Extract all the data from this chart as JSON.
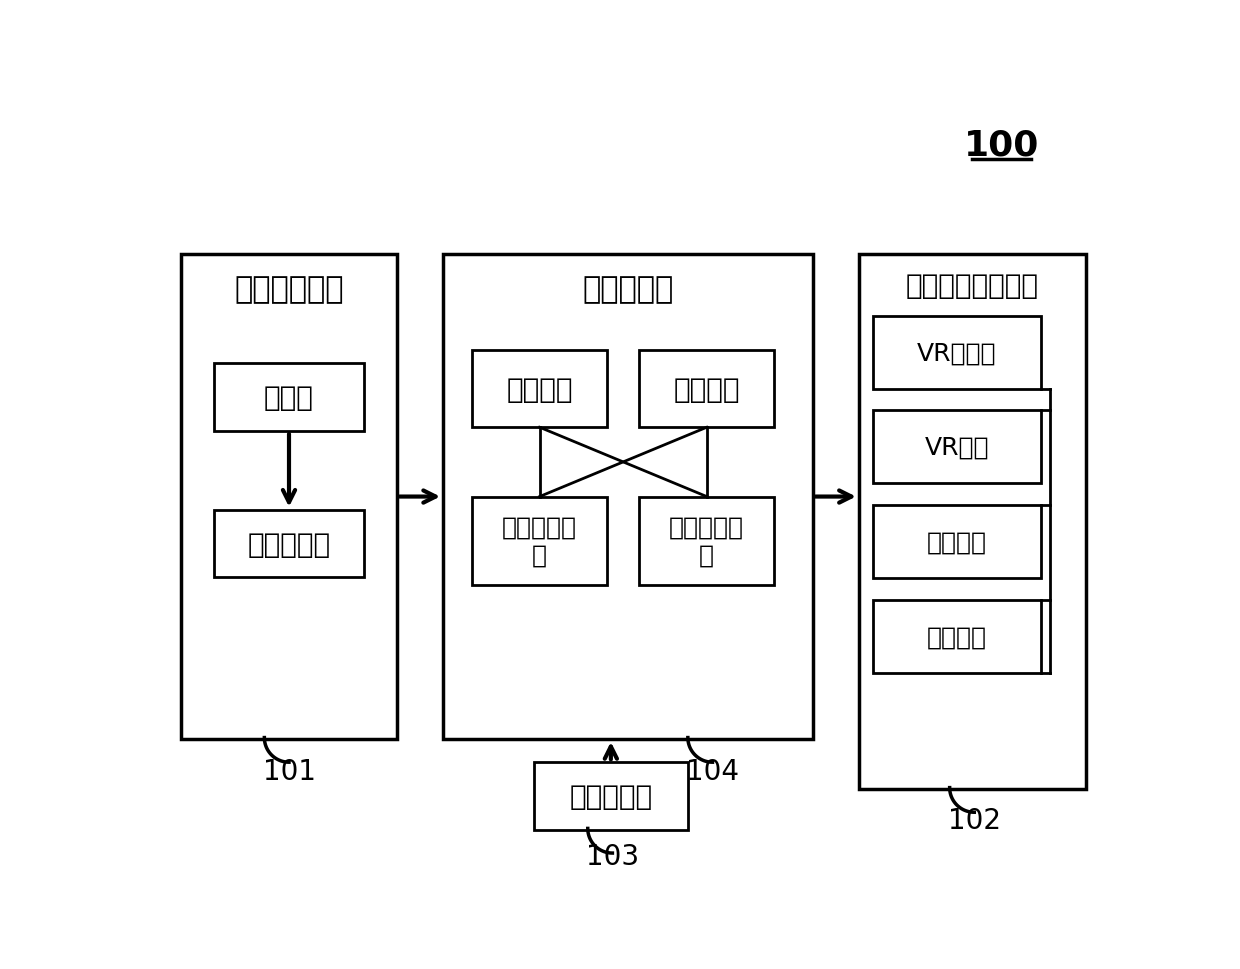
{
  "background_color": "#ffffff",
  "title_100": "100",
  "box_101_label": "驾驶模拟系统",
  "box_102_label": "虚拟现实显示系统",
  "box_server_label": "仿真服务器",
  "inner_box_driver_label": "驾驶人",
  "inner_box_simulator_label": "驾驶模拟器",
  "inner_box_input_label": "输入模块",
  "inner_box_output_label": "输出模块",
  "inner_box_sim_run_label": "仿真运行模\n块",
  "inner_box_venv_label": "虚拟环境模\n块",
  "inner_box_vr_display_label": "VR显示器",
  "inner_box_vr_helmet_label": "VR头盔",
  "inner_box_sound_label": "声音模拟",
  "inner_box_drive_module_label": "驱动模块",
  "client_box_label": "仿真客户端",
  "label_101": "101",
  "label_102": "102",
  "label_103": "103",
  "label_104": "104"
}
